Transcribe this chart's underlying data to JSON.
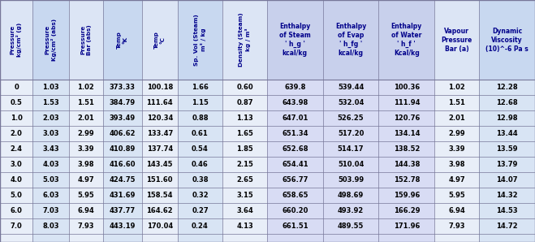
{
  "header_line1": [
    "Pressure\nkg/cm² (g)",
    "Pressure\nKg/cm² (abs)",
    "Pressure\nBar (abs)",
    "Temp\n°K",
    "Temp\n°C",
    "Sp. Vol (Steam)\nm³ / kg",
    "Density (Steam)\nkg / m³",
    "Enthalpy\nof Steam\n' h_g '\nkcal/kg",
    "Enthalpy\nof Evap\n' h_fg '\nkcal/kg",
    "Enthalpy\nof Water\n' h_f '\nKcal/kg",
    "Vapour\nPressure\nBar (a)",
    "Dynamic\nViscosity\n(10)^-6 Pa s"
  ],
  "rows": [
    [
      "0",
      "1.03",
      "1.02",
      "373.33",
      "100.18",
      "1.66",
      "0.60",
      "639.8",
      "539.44",
      "100.36",
      "1.02",
      "12.28"
    ],
    [
      "0.5",
      "1.53",
      "1.51",
      "384.79",
      "111.64",
      "1.15",
      "0.87",
      "643.98",
      "532.04",
      "111.94",
      "1.51",
      "12.68"
    ],
    [
      "1.0",
      "2.03",
      "2.01",
      "393.49",
      "120.34",
      "0.88",
      "1.13",
      "647.01",
      "526.25",
      "120.76",
      "2.01",
      "12.98"
    ],
    [
      "2.0",
      "3.03",
      "2.99",
      "406.62",
      "133.47",
      "0.61",
      "1.65",
      "651.34",
      "517.20",
      "134.14",
      "2.99",
      "13.44"
    ],
    [
      "2.4",
      "3.43",
      "3.39",
      "410.89",
      "137.74",
      "0.54",
      "1.85",
      "652.68",
      "514.17",
      "138.52",
      "3.39",
      "13.59"
    ],
    [
      "3.0",
      "4.03",
      "3.98",
      "416.60",
      "143.45",
      "0.46",
      "2.15",
      "654.41",
      "510.04",
      "144.38",
      "3.98",
      "13.79"
    ],
    [
      "4.0",
      "5.03",
      "4.97",
      "424.75",
      "151.60",
      "0.38",
      "2.65",
      "656.77",
      "503.99",
      "152.78",
      "4.97",
      "14.07"
    ],
    [
      "5.0",
      "6.03",
      "5.95",
      "431.69",
      "158.54",
      "0.32",
      "3.15",
      "658.65",
      "498.69",
      "159.96",
      "5.95",
      "14.32"
    ],
    [
      "6.0",
      "7.03",
      "6.94",
      "437.77",
      "164.62",
      "0.27",
      "3.64",
      "660.20",
      "493.92",
      "166.29",
      "6.94",
      "14.53"
    ],
    [
      "7.0",
      "8.03",
      "7.93",
      "443.19",
      "170.04",
      "0.24",
      "4.13",
      "661.51",
      "489.55",
      "171.96",
      "7.93",
      "14.72"
    ]
  ],
  "col_widths_raw": [
    3.8,
    4.2,
    4.0,
    4.5,
    4.2,
    5.2,
    5.2,
    6.5,
    6.5,
    6.5,
    5.2,
    6.5
  ],
  "header_rotated_cols": [
    0,
    1,
    2,
    3,
    4,
    5,
    6
  ],
  "header_bg_light": "#dde5f5",
  "header_bg_dark": "#c0cfe8",
  "row_bg_light": "#e8eef8",
  "row_bg_dark": "#d0dcf0",
  "col_highlight": [
    7,
    8,
    9
  ],
  "col_highlight_bg": "#d8d8f0",
  "border_color": "#777799",
  "text_color": "#000000",
  "header_text_color": "#00008B",
  "figsize": [
    6.59,
    2.98
  ],
  "dpi": 100
}
